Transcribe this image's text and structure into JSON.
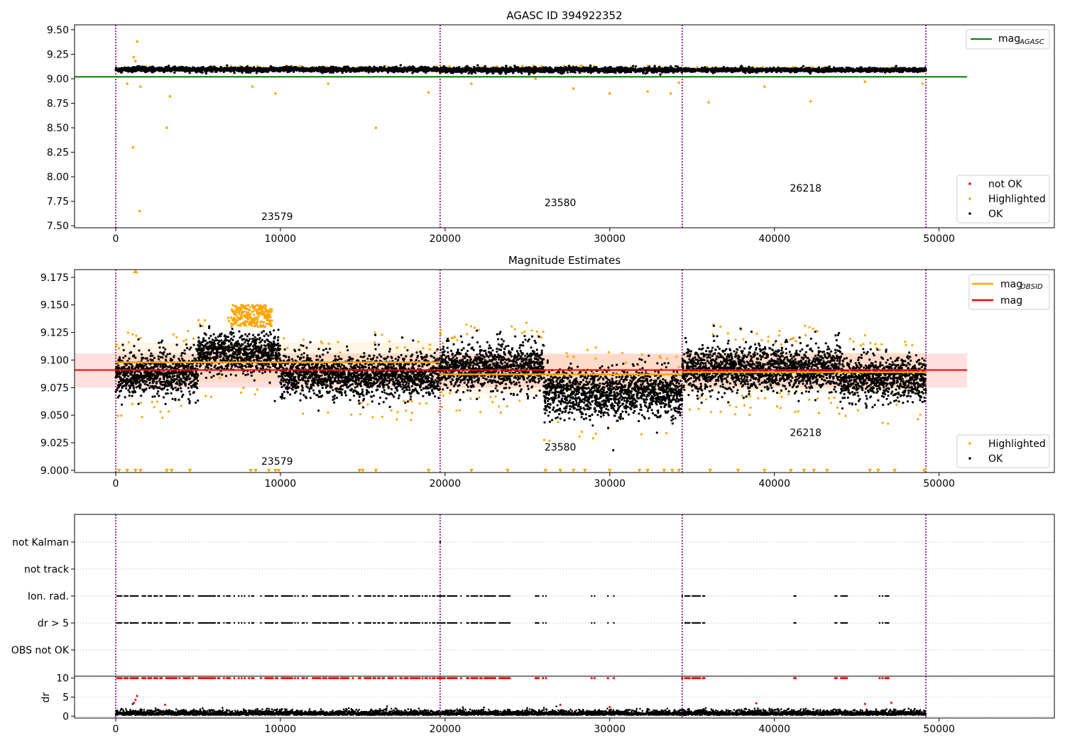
{
  "chart_data": [
    {
      "type": "scatter",
      "title": "AGASC ID 394922352",
      "xlim": [
        -2500,
        57000
      ],
      "ylim": [
        7.48,
        9.55
      ],
      "x_ticks": [
        0,
        10000,
        20000,
        30000,
        40000,
        50000
      ],
      "y_ticks": [
        7.5,
        7.75,
        8.0,
        8.25,
        8.5,
        8.75,
        9.0,
        9.25,
        9.5
      ],
      "y_tick_labels": [
        "7.50",
        "7.75",
        "8.00",
        "8.25",
        "8.50",
        "8.75",
        "9.00",
        "9.25",
        "9.50"
      ],
      "obsid_boundaries": [
        0,
        19700,
        34400,
        49200
      ],
      "obsid_labels": [
        {
          "text": "23579",
          "x": 9800,
          "y": 7.56
        },
        {
          "text": "23580",
          "x": 27000,
          "y": 7.7
        },
        {
          "text": "26218",
          "x": 41900,
          "y": 7.85
        }
      ],
      "mag_agasc": {
        "value": 9.02,
        "x_range": [
          -2500,
          51700
        ]
      },
      "legend_top": {
        "placement": "upper right",
        "entries": [
          {
            "label": "mag",
            "sub": "AGASC",
            "color": "#008000"
          }
        ]
      },
      "legend_bottom": {
        "placement": "lower right",
        "entries": [
          {
            "label": "not OK",
            "color": "#ff0000"
          },
          {
            "label": "Highlighted",
            "color": "#ffa500"
          },
          {
            "label": "OK",
            "color": "#000000"
          }
        ]
      },
      "ok_band": {
        "segments": [
          {
            "x": [
              0,
              19700
            ],
            "y": [
              9.06,
              9.13
            ]
          },
          {
            "x": [
              19700,
              34400
            ],
            "y": [
              9.05,
              9.13
            ]
          },
          {
            "x": [
              34400,
              49200
            ],
            "y": [
              9.06,
              9.12
            ]
          }
        ]
      },
      "highlighted_outliers": [
        {
          "x": 1300,
          "y": 9.38
        },
        {
          "x": 1100,
          "y": 9.22
        },
        {
          "x": 1200,
          "y": 9.18
        },
        {
          "x": 1050,
          "y": 8.3
        },
        {
          "x": 1450,
          "y": 7.65
        },
        {
          "x": 3100,
          "y": 8.5
        },
        {
          "x": 3300,
          "y": 8.82
        },
        {
          "x": 15800,
          "y": 8.5
        },
        {
          "x": 42200,
          "y": 8.77
        },
        {
          "x": 36000,
          "y": 8.76
        },
        {
          "x": 700,
          "y": 8.95
        },
        {
          "x": 1500,
          "y": 8.92
        },
        {
          "x": 8300,
          "y": 8.92
        },
        {
          "x": 9700,
          "y": 8.85
        },
        {
          "x": 19000,
          "y": 8.86
        },
        {
          "x": 27800,
          "y": 8.9
        },
        {
          "x": 30000,
          "y": 8.85
        },
        {
          "x": 32300,
          "y": 8.87
        },
        {
          "x": 33700,
          "y": 8.85
        },
        {
          "x": 34200,
          "y": 8.96
        },
        {
          "x": 12900,
          "y": 8.95
        },
        {
          "x": 21600,
          "y": 8.95
        },
        {
          "x": 25500,
          "y": 9.0
        },
        {
          "x": 39400,
          "y": 8.92
        },
        {
          "x": 45500,
          "y": 8.97
        },
        {
          "x": 49000,
          "y": 8.95
        }
      ]
    },
    {
      "type": "scatter",
      "title": "Magnitude Estimates",
      "xlim": [
        -2500,
        57000
      ],
      "ylim": [
        8.998,
        9.182
      ],
      "x_ticks": [
        0,
        10000,
        20000,
        30000,
        40000,
        50000
      ],
      "y_ticks": [
        9.0,
        9.025,
        9.05,
        9.075,
        9.1,
        9.125,
        9.15,
        9.175
      ],
      "y_tick_labels": [
        "9.000",
        "9.025",
        "9.050",
        "9.075",
        "9.100",
        "9.125",
        "9.150",
        "9.175"
      ],
      "obsid_boundaries": [
        0,
        19700,
        34400,
        49200
      ],
      "obsid_labels": [
        {
          "text": "23579",
          "x": 9800,
          "y": 9.005
        },
        {
          "text": "23580",
          "x": 27000,
          "y": 9.018
        },
        {
          "text": "26218",
          "x": 41900,
          "y": 9.031
        }
      ],
      "mag": {
        "value": 9.091,
        "x_range": [
          -2500,
          51700
        ],
        "band": [
          9.075,
          9.106
        ]
      },
      "mag_obsid": [
        {
          "x": [
            0,
            19700
          ],
          "value": 9.098
        },
        {
          "x": [
            19700,
            34400
          ],
          "value": 9.087
        },
        {
          "x": [
            34400,
            49200
          ],
          "value": 9.089
        }
      ],
      "segments": [
        {
          "x": [
            0,
            5000
          ],
          "center": 9.087,
          "spread": 0.018
        },
        {
          "x": 5000,
          "x_end": 10000,
          "center": 9.108,
          "spread": 0.018
        },
        {
          "x": [
            10000,
            19700
          ],
          "center": 9.087,
          "spread": 0.018
        },
        {
          "x": [
            19700,
            26000
          ],
          "center": 9.093,
          "spread": 0.02
        },
        {
          "x": [
            26000,
            34400
          ],
          "center": 9.07,
          "spread": 0.02
        },
        {
          "x": [
            34400,
            44000
          ],
          "center": 9.092,
          "spread": 0.02
        },
        {
          "x": [
            44000,
            49200
          ],
          "center": 9.083,
          "spread": 0.018
        }
      ],
      "legend_top": {
        "placement": "upper right",
        "entries": [
          {
            "label": "mag",
            "sub": "OBSID",
            "color": "#ffa500"
          },
          {
            "label": "mag",
            "sub": "",
            "color": "#ff0000"
          }
        ]
      },
      "legend_bottom": {
        "placement": "lower right",
        "entries": [
          {
            "label": "Highlighted",
            "color": "#ffa500"
          },
          {
            "label": "OK",
            "color": "#000000"
          }
        ]
      }
    },
    {
      "type": "scatter",
      "title": "",
      "xlim": [
        -2500,
        57000
      ],
      "categories": [
        "OBS not OK",
        "dr > 5",
        "Ion. rad.",
        "not track",
        "not Kalman"
      ],
      "flag_rows": [
        {
          "label": "OBS not OK",
          "points": []
        },
        {
          "label": "dr > 5",
          "points": "ion"
        },
        {
          "label": "Ion. rad.",
          "points": "ion"
        },
        {
          "label": "not track",
          "points": []
        },
        {
          "label": "not Kalman",
          "points": [
            19700
          ]
        }
      ],
      "obsid_boundaries": [
        0,
        19700,
        34400,
        49200
      ]
    },
    {
      "type": "scatter",
      "title": "",
      "ylabel": "dr",
      "xlim": [
        -2500,
        57000
      ],
      "ylim": [
        -0.5,
        10.5
      ],
      "x_ticks": [
        0,
        10000,
        20000,
        30000,
        40000,
        50000
      ],
      "y_ticks": [
        0,
        5,
        10
      ],
      "obsid_boundaries": [
        0,
        19700,
        34400,
        49200
      ],
      "clipped_value": 10
    }
  ],
  "colors": {
    "ok": "#000000",
    "highlighted": "#ffa500",
    "not_ok": "#ff0000",
    "mag_agasc": "#008000",
    "mag": "#ff0000",
    "mag_obsid": "#ffa500",
    "boundary": "#800080"
  }
}
